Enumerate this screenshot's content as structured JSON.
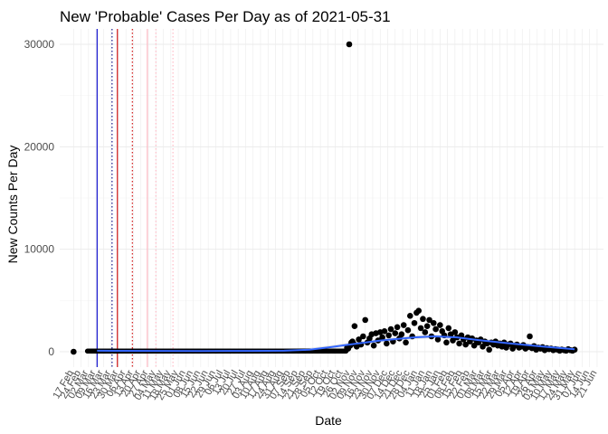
{
  "chart_data": {
    "type": "scatter",
    "title": "New 'Probable' Cases Per Day as of 2021-05-31",
    "xlabel": "Date",
    "ylabel": "New Counts Per Day",
    "x_range": [
      "2020-02-04",
      "2021-06-27"
    ],
    "ylim": [
      -1500,
      31500
    ],
    "y_ticks": [
      0,
      10000,
      20000,
      30000
    ],
    "y_tick_labels": [
      "0",
      "10000",
      "20000",
      "30000"
    ],
    "x_ticks": [
      "2020-02-17",
      "2020-02-24",
      "2020-03-02",
      "2020-03-09",
      "2020-03-16",
      "2020-03-23",
      "2020-03-30",
      "2020-04-06",
      "2020-04-13",
      "2020-04-20",
      "2020-04-27",
      "2020-05-04",
      "2020-05-11",
      "2020-05-18",
      "2020-05-25",
      "2020-06-01",
      "2020-06-08",
      "2020-06-15",
      "2020-06-22",
      "2020-06-29",
      "2020-07-06",
      "2020-07-13",
      "2020-07-20",
      "2020-07-27",
      "2020-08-03",
      "2020-08-10",
      "2020-08-17",
      "2020-08-24",
      "2020-08-31",
      "2020-09-07",
      "2020-09-14",
      "2020-09-21",
      "2020-09-28",
      "2020-10-05",
      "2020-10-12",
      "2020-10-19",
      "2020-10-26",
      "2020-11-02",
      "2020-11-09",
      "2020-11-16",
      "2020-11-23",
      "2020-11-30",
      "2020-12-07",
      "2020-12-14",
      "2020-12-21",
      "2020-12-28",
      "2021-01-04",
      "2021-01-11",
      "2021-01-18",
      "2021-01-25",
      "2021-02-01",
      "2021-02-08",
      "2021-02-15",
      "2021-02-22",
      "2021-03-01",
      "2021-03-08",
      "2021-03-15",
      "2021-03-22",
      "2021-03-29",
      "2021-04-05",
      "2021-04-12",
      "2021-04-19",
      "2021-04-26",
      "2021-05-03",
      "2021-05-10",
      "2021-05-17",
      "2021-05-24",
      "2021-05-31",
      "2021-06-07",
      "2021-06-14",
      "2021-06-21"
    ],
    "x_tick_labels": [
      "17 Feb",
      "24 Feb",
      "02 Mar",
      "09 Mar",
      "16 Mar",
      "23 Mar",
      "30 Mar",
      "06 Apr",
      "13 Apr",
      "20 Apr",
      "27 Apr",
      "04 May",
      "11 May",
      "18 May",
      "25 May",
      "01 Jun",
      "08 Jun",
      "15 Jun",
      "22 Jun",
      "29 Jun",
      "06 Jul",
      "13 Jul",
      "20 Jul",
      "27 Jul",
      "03 Aug",
      "10 Aug",
      "17 Aug",
      "24 Aug",
      "31 Aug",
      "07 Sep",
      "14 Sep",
      "21 Sep",
      "28 Sep",
      "05 Oct",
      "12 Oct",
      "19 Oct",
      "26 Oct",
      "02 Nov",
      "09 Nov",
      "16 Nov",
      "23 Nov",
      "30 Nov",
      "07 Dec",
      "14 Dec",
      "21 Dec",
      "28 Dec",
      "04 Jan",
      "11 Jan",
      "18 Jan",
      "25 Jan",
      "01 Feb",
      "08 Feb",
      "15 Feb",
      "22 Feb",
      "01 Mar",
      "08 Mar",
      "15 Mar",
      "22 Mar",
      "29 Mar",
      "05 Apr",
      "12 Apr",
      "19 Apr",
      "26 Apr",
      "03 May",
      "10 May",
      "17 May",
      "24 May",
      "31 May",
      "07 Jun",
      "14 Jun",
      "21 Jun"
    ],
    "grid": true,
    "legend": "none",
    "colors": {
      "points": "#000000",
      "smooth": "#3366ff",
      "ribbon": "#c8c8c8",
      "vline_blue": "#0000cc",
      "vline_red": "#cc0000",
      "vline_pink": "#ffb6c1",
      "grid_major": "#ebebeb",
      "grid_minor": "#f5f5f5"
    },
    "vlines": [
      {
        "date": "2020-03-10",
        "color": "#0000cc",
        "style": "solid"
      },
      {
        "date": "2020-03-24",
        "color": "#000080",
        "style": "dotted"
      },
      {
        "date": "2020-03-29",
        "color": "#cc0000",
        "style": "solid"
      },
      {
        "date": "2020-04-12",
        "color": "#cc0000",
        "style": "dotted"
      },
      {
        "date": "2020-04-26",
        "color": "#ffb6c1",
        "style": "solid"
      },
      {
        "date": "2020-05-04",
        "color": "#ffb6c1",
        "style": "dotted"
      },
      {
        "date": "2020-05-20",
        "color": "#ffb6c1",
        "style": "dotted"
      }
    ],
    "series": [
      {
        "points": [
          {
            "x": "2020-02-17",
            "y": 0
          },
          {
            "x": "2020-10-30",
            "y": 400
          },
          {
            "x": "2020-10-31",
            "y": 300
          },
          {
            "x": "2020-11-01",
            "y": 30000
          },
          {
            "x": "2020-11-02",
            "y": 600
          },
          {
            "x": "2020-11-03",
            "y": 900
          },
          {
            "x": "2020-11-04",
            "y": 1000
          },
          {
            "x": "2020-11-05",
            "y": 800
          },
          {
            "x": "2020-11-06",
            "y": 2500
          },
          {
            "x": "2020-11-08",
            "y": 500
          },
          {
            "x": "2020-11-10",
            "y": 1200
          },
          {
            "x": "2020-11-12",
            "y": 700
          },
          {
            "x": "2020-11-14",
            "y": 1500
          },
          {
            "x": "2020-11-16",
            "y": 3100
          },
          {
            "x": "2020-11-18",
            "y": 900
          },
          {
            "x": "2020-11-20",
            "y": 1300
          },
          {
            "x": "2020-11-22",
            "y": 1700
          },
          {
            "x": "2020-11-24",
            "y": 600
          },
          {
            "x": "2020-11-26",
            "y": 1800
          },
          {
            "x": "2020-11-28",
            "y": 1100
          },
          {
            "x": "2020-11-30",
            "y": 1900
          },
          {
            "x": "2020-12-02",
            "y": 1400
          },
          {
            "x": "2020-12-04",
            "y": 2000
          },
          {
            "x": "2020-12-06",
            "y": 800
          },
          {
            "x": "2020-12-08",
            "y": 1600
          },
          {
            "x": "2020-12-10",
            "y": 2200
          },
          {
            "x": "2020-12-12",
            "y": 1000
          },
          {
            "x": "2020-12-14",
            "y": 1800
          },
          {
            "x": "2020-12-16",
            "y": 2400
          },
          {
            "x": "2020-12-18",
            "y": 1300
          },
          {
            "x": "2020-12-20",
            "y": 1700
          },
          {
            "x": "2020-12-22",
            "y": 2600
          },
          {
            "x": "2020-12-24",
            "y": 900
          },
          {
            "x": "2020-12-26",
            "y": 2100
          },
          {
            "x": "2020-12-28",
            "y": 3500
          },
          {
            "x": "2020-12-30",
            "y": 1500
          },
          {
            "x": "2021-01-01",
            "y": 2800
          },
          {
            "x": "2021-01-03",
            "y": 3800
          },
          {
            "x": "2021-01-05",
            "y": 4000
          },
          {
            "x": "2021-01-07",
            "y": 2300
          },
          {
            "x": "2021-01-09",
            "y": 3200
          },
          {
            "x": "2021-01-11",
            "y": 1900
          },
          {
            "x": "2021-01-13",
            "y": 2500
          },
          {
            "x": "2021-01-15",
            "y": 3100
          },
          {
            "x": "2021-01-17",
            "y": 1500
          },
          {
            "x": "2021-01-19",
            "y": 2800
          },
          {
            "x": "2021-01-21",
            "y": 2200
          },
          {
            "x": "2021-01-23",
            "y": 1200
          },
          {
            "x": "2021-01-25",
            "y": 2600
          },
          {
            "x": "2021-01-27",
            "y": 2000
          },
          {
            "x": "2021-01-29",
            "y": 1600
          },
          {
            "x": "2021-01-31",
            "y": 900
          },
          {
            "x": "2021-02-02",
            "y": 2300
          },
          {
            "x": "2021-02-04",
            "y": 1700
          },
          {
            "x": "2021-02-06",
            "y": 1100
          },
          {
            "x": "2021-02-08",
            "y": 1900
          },
          {
            "x": "2021-02-10",
            "y": 1400
          },
          {
            "x": "2021-02-12",
            "y": 800
          },
          {
            "x": "2021-02-14",
            "y": 1600
          },
          {
            "x": "2021-02-16",
            "y": 1200
          },
          {
            "x": "2021-02-18",
            "y": 700
          },
          {
            "x": "2021-02-20",
            "y": 1400
          },
          {
            "x": "2021-02-22",
            "y": 1000
          },
          {
            "x": "2021-02-24",
            "y": 1300
          },
          {
            "x": "2021-02-26",
            "y": 600
          },
          {
            "x": "2021-02-28",
            "y": 1100
          },
          {
            "x": "2021-03-02",
            "y": 900
          },
          {
            "x": "2021-03-04",
            "y": 1200
          },
          {
            "x": "2021-03-06",
            "y": 500
          },
          {
            "x": "2021-03-08",
            "y": 1000
          },
          {
            "x": "2021-03-10",
            "y": 800
          },
          {
            "x": "2021-03-12",
            "y": 200
          },
          {
            "x": "2021-03-14",
            "y": 900
          },
          {
            "x": "2021-03-16",
            "y": 700
          },
          {
            "x": "2021-03-18",
            "y": 1000
          },
          {
            "x": "2021-03-20",
            "y": 600
          },
          {
            "x": "2021-03-22",
            "y": 800
          },
          {
            "x": "2021-03-24",
            "y": 500
          },
          {
            "x": "2021-03-26",
            "y": 900
          },
          {
            "x": "2021-03-28",
            "y": 400
          },
          {
            "x": "2021-03-30",
            "y": 700
          },
          {
            "x": "2021-04-01",
            "y": 800
          },
          {
            "x": "2021-04-03",
            "y": 300
          },
          {
            "x": "2021-04-05",
            "y": 600
          },
          {
            "x": "2021-04-07",
            "y": 700
          },
          {
            "x": "2021-04-09",
            "y": 400
          },
          {
            "x": "2021-04-11",
            "y": 500
          },
          {
            "x": "2021-04-13",
            "y": 650
          },
          {
            "x": "2021-04-15",
            "y": 300
          },
          {
            "x": "2021-04-17",
            "y": 450
          },
          {
            "x": "2021-04-19",
            "y": 1500
          },
          {
            "x": "2021-04-21",
            "y": 350
          },
          {
            "x": "2021-04-23",
            "y": 550
          },
          {
            "x": "2021-04-25",
            "y": 200
          },
          {
            "x": "2021-04-27",
            "y": 400
          },
          {
            "x": "2021-04-29",
            "y": 300
          },
          {
            "x": "2021-05-01",
            "y": 450
          },
          {
            "x": "2021-05-03",
            "y": 150
          },
          {
            "x": "2021-05-05",
            "y": 350
          },
          {
            "x": "2021-05-07",
            "y": 250
          },
          {
            "x": "2021-05-09",
            "y": 300
          },
          {
            "x": "2021-05-11",
            "y": 150
          },
          {
            "x": "2021-05-13",
            "y": 250
          },
          {
            "x": "2021-05-15",
            "y": 200
          },
          {
            "x": "2021-05-17",
            "y": 100
          },
          {
            "x": "2021-05-19",
            "y": 200
          },
          {
            "x": "2021-05-21",
            "y": 150
          },
          {
            "x": "2021-05-23",
            "y": 100
          },
          {
            "x": "2021-05-25",
            "y": 250
          },
          {
            "x": "2021-05-27",
            "y": 150
          },
          {
            "x": "2021-05-29",
            "y": 100
          },
          {
            "x": "2021-05-31",
            "y": 200
          }
        ]
      }
    ],
    "smooth": [
      {
        "x": "2020-03-10",
        "y": 100
      },
      {
        "x": "2020-05-01",
        "y": 80
      },
      {
        "x": "2020-06-15",
        "y": 70
      },
      {
        "x": "2020-08-01",
        "y": 80
      },
      {
        "x": "2020-09-01",
        "y": 100
      },
      {
        "x": "2020-09-25",
        "y": 200
      },
      {
        "x": "2020-10-15",
        "y": 450
      },
      {
        "x": "2020-11-01",
        "y": 700
      },
      {
        "x": "2020-12-01",
        "y": 1100
      },
      {
        "x": "2021-01-01",
        "y": 1400
      },
      {
        "x": "2021-01-20",
        "y": 1500
      },
      {
        "x": "2021-02-10",
        "y": 1400
      },
      {
        "x": "2021-03-01",
        "y": 1150
      },
      {
        "x": "2021-04-01",
        "y": 800
      },
      {
        "x": "2021-05-01",
        "y": 500
      },
      {
        "x": "2021-05-31",
        "y": 250
      }
    ]
  }
}
